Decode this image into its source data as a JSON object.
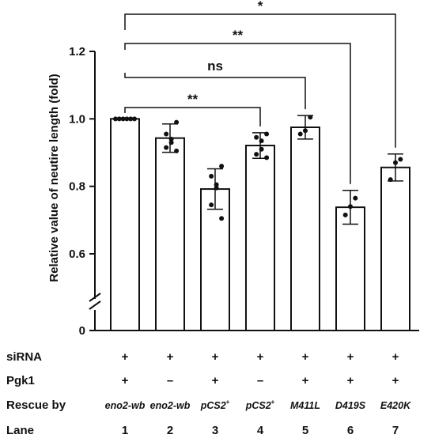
{
  "chart_data": {
    "type": "bar",
    "ylabel": "Relative value of neutire length (fold)",
    "ylim": [
      0,
      1.2
    ],
    "axis_break": [
      0.5,
      0.6
    ],
    "yticks": [
      "0",
      "0.6",
      "0.8",
      "1.0",
      "1.2"
    ],
    "ytick_values": [
      0,
      0.6,
      0.8,
      1.0,
      1.2
    ],
    "categories": [
      "1",
      "2",
      "3",
      "4",
      "5",
      "6",
      "7"
    ],
    "values": [
      1.0,
      0.943,
      0.792,
      0.921,
      0.975,
      0.738,
      0.856
    ],
    "error": [
      0.0,
      0.042,
      0.06,
      0.038,
      0.035,
      0.05,
      0.04
    ],
    "points": [
      [
        1.0,
        1.0,
        1.0,
        1.0,
        1.0,
        1.0
      ],
      [
        0.99,
        0.955,
        0.94,
        0.93,
        0.915,
        0.905
      ],
      [
        0.86,
        0.83,
        0.805,
        0.795,
        0.745,
        0.705
      ],
      [
        0.955,
        0.945,
        0.935,
        0.91,
        0.895,
        0.885
      ],
      [
        1.005,
        0.965,
        0.955
      ],
      [
        0.765,
        0.74,
        0.715
      ],
      [
        0.88,
        0.87,
        0.82
      ]
    ],
    "bar_color": "#ffffff",
    "edge_color": "#111111",
    "significance": [
      {
        "from": "1",
        "to": "4",
        "label": "**"
      },
      {
        "from": "1",
        "to": "5",
        "label": "ns"
      },
      {
        "from": "1",
        "to": "6",
        "label": "**"
      },
      {
        "from": "1",
        "to": "7",
        "label": "*"
      }
    ],
    "table": {
      "rows": [
        {
          "label": "siRNA",
          "cells": [
            "+",
            "+",
            "+",
            "+",
            "+",
            "+",
            "+"
          ]
        },
        {
          "label": "Pgk1",
          "cells": [
            "+",
            "–",
            "+",
            "–",
            "+",
            "+",
            "+"
          ]
        },
        {
          "label": "Rescue by",
          "cells": [
            "eno2-wb",
            "eno2-wb",
            "pCS2+",
            "pCS2+",
            "M411L",
            "D419S",
            "E420K"
          ]
        },
        {
          "label": "Lane",
          "cells": [
            "1",
            "2",
            "3",
            "4",
            "5",
            "6",
            "7"
          ]
        }
      ]
    }
  }
}
